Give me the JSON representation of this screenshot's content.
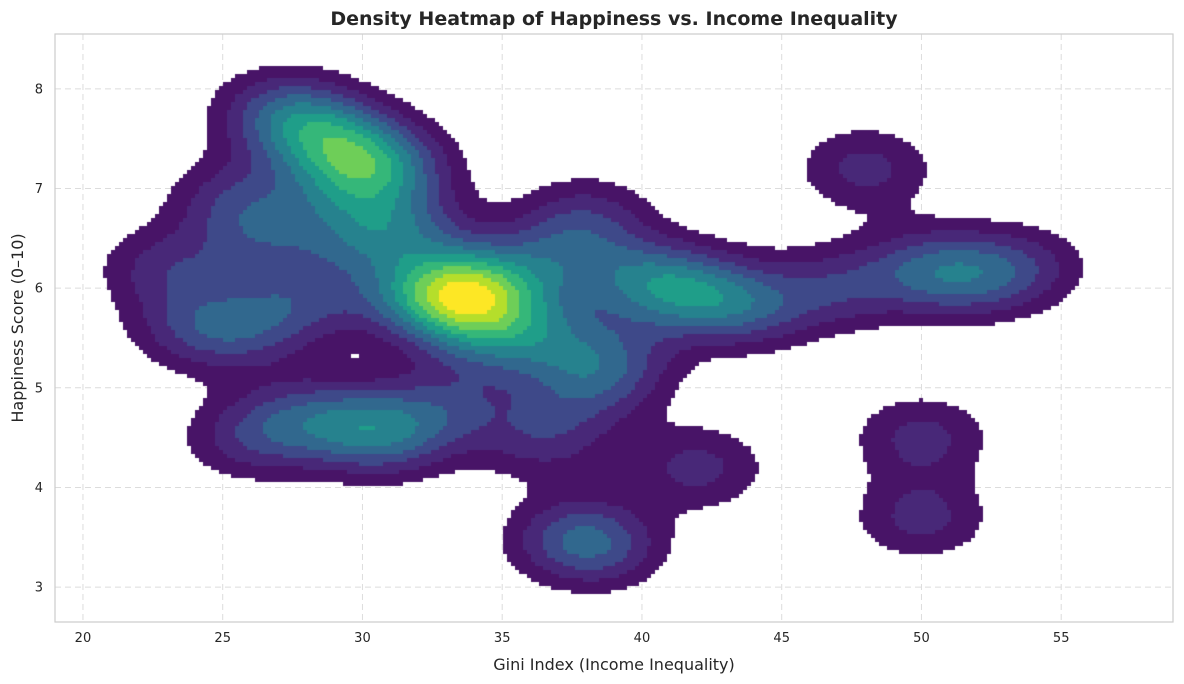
{
  "chart_data": {
    "type": "heatmap",
    "subtype": "kde-density-contour",
    "title": "Density Heatmap of Happiness vs. Income Inequality",
    "xlabel": "Gini Index (Income Inequality)",
    "ylabel": "Happiness Score (0–10)",
    "xlim": [
      19,
      59
    ],
    "ylim": [
      2.65,
      8.55
    ],
    "xticks": [
      20,
      25,
      30,
      35,
      40,
      45,
      50,
      55
    ],
    "yticks": [
      3,
      4,
      5,
      6,
      7,
      8
    ],
    "grid": true,
    "colormap": "viridis",
    "levels": 10,
    "bandwidth_x": 1.7,
    "bandwidth_y": 0.3,
    "min_density_fraction": 0.1,
    "points": [
      {
        "x": 27.0,
        "y": 7.8
      },
      {
        "x": 28.0,
        "y": 7.6
      },
      {
        "x": 29.0,
        "y": 7.5
      },
      {
        "x": 30.0,
        "y": 7.3
      },
      {
        "x": 31.0,
        "y": 7.2
      },
      {
        "x": 29.5,
        "y": 7.0
      },
      {
        "x": 25.5,
        "y": 6.9
      },
      {
        "x": 26.5,
        "y": 6.5
      },
      {
        "x": 33.0,
        "y": 6.0
      },
      {
        "x": 34.0,
        "y": 6.1
      },
      {
        "x": 33.5,
        "y": 5.8
      },
      {
        "x": 35.0,
        "y": 5.9
      },
      {
        "x": 32.0,
        "y": 5.9
      },
      {
        "x": 34.5,
        "y": 5.5
      },
      {
        "x": 23.0,
        "y": 6.2
      },
      {
        "x": 24.0,
        "y": 5.6
      },
      {
        "x": 26.0,
        "y": 5.6
      },
      {
        "x": 28.0,
        "y": 5.9
      },
      {
        "x": 30.0,
        "y": 6.5
      },
      {
        "x": 31.5,
        "y": 6.6
      },
      {
        "x": 37.0,
        "y": 6.3
      },
      {
        "x": 38.0,
        "y": 6.7
      },
      {
        "x": 36.5,
        "y": 5.5
      },
      {
        "x": 40.0,
        "y": 6.1
      },
      {
        "x": 41.0,
        "y": 6.0
      },
      {
        "x": 42.5,
        "y": 5.9
      },
      {
        "x": 44.0,
        "y": 5.8
      },
      {
        "x": 39.0,
        "y": 5.3
      },
      {
        "x": 38.0,
        "y": 5.0
      },
      {
        "x": 30.0,
        "y": 4.6
      },
      {
        "x": 31.0,
        "y": 4.5
      },
      {
        "x": 28.0,
        "y": 4.7
      },
      {
        "x": 26.0,
        "y": 4.5
      },
      {
        "x": 33.0,
        "y": 4.8
      },
      {
        "x": 36.5,
        "y": 4.5
      },
      {
        "x": 42.0,
        "y": 4.2
      },
      {
        "x": 38.5,
        "y": 3.4
      },
      {
        "x": 37.5,
        "y": 3.5
      },
      {
        "x": 48.0,
        "y": 7.2
      },
      {
        "x": 50.0,
        "y": 6.2
      },
      {
        "x": 51.5,
        "y": 6.1
      },
      {
        "x": 53.5,
        "y": 6.2
      },
      {
        "x": 47.0,
        "y": 6.0
      },
      {
        "x": 50.0,
        "y": 4.5
      },
      {
        "x": 50.0,
        "y": 3.7
      }
    ]
  }
}
